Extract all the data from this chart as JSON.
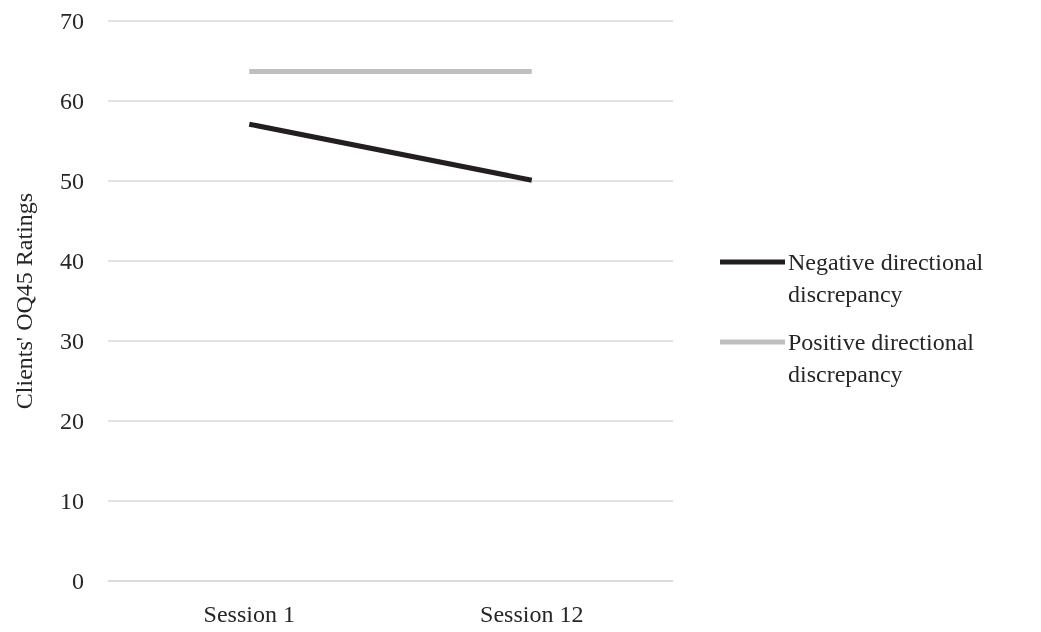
{
  "chart_data": {
    "type": "line",
    "ylabel": "Clients' OQ45 Ratings",
    "categories": [
      "Session 1",
      "Session 12"
    ],
    "series": [
      {
        "name": "Negative directional discrepancy",
        "color": "#231f20",
        "values": [
          57.1,
          50.1
        ]
      },
      {
        "name": "Positive directional discrepancy",
        "color": "#bfbfbf",
        "values": [
          63.7,
          63.7
        ]
      }
    ],
    "ylim": [
      0,
      70
    ],
    "yticks": [
      0,
      10,
      20,
      30,
      40,
      50,
      60,
      70
    ],
    "grid": "y",
    "legend": "right",
    "marker": "none",
    "line_style": "solid"
  }
}
